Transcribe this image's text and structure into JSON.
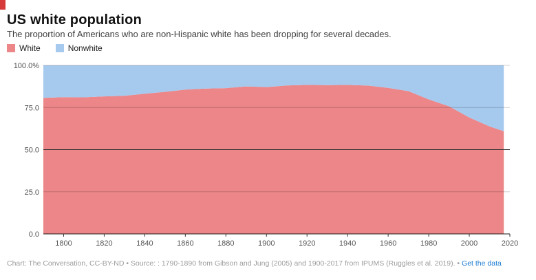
{
  "header": {
    "title": "US white population",
    "subtitle": "The proportion of Americans who are non-Hispanic white has been dropping for several decades."
  },
  "legend": {
    "items": [
      {
        "label": "White",
        "color": "#ec8688"
      },
      {
        "label": "Nonwhite",
        "color": "#a6c9ee"
      }
    ]
  },
  "chart_data": {
    "type": "area",
    "stacked": true,
    "percent": true,
    "title": "US white population",
    "x": [
      1790,
      1800,
      1810,
      1820,
      1830,
      1840,
      1850,
      1860,
      1870,
      1880,
      1890,
      1900,
      1910,
      1920,
      1930,
      1940,
      1950,
      1960,
      1970,
      1980,
      1990,
      2000,
      2010,
      2017
    ],
    "series": [
      {
        "name": "White",
        "color": "#ec8688",
        "values": [
          80.7,
          81.1,
          81.0,
          81.6,
          81.9,
          83.2,
          84.3,
          85.6,
          86.2,
          86.5,
          87.5,
          87.1,
          88.1,
          88.4,
          88.3,
          88.4,
          88.0,
          86.6,
          84.7,
          79.8,
          75.7,
          69.1,
          63.8,
          60.9
        ]
      },
      {
        "name": "Nonwhite",
        "color": "#a6c9ee",
        "values": [
          19.3,
          18.9,
          19.0,
          18.4,
          18.1,
          16.8,
          15.7,
          14.4,
          13.8,
          13.5,
          12.5,
          12.9,
          11.9,
          11.6,
          11.7,
          11.6,
          12.0,
          13.4,
          15.3,
          20.2,
          24.3,
          30.9,
          36.2,
          39.1
        ]
      }
    ],
    "xlim": [
      1790,
      2020
    ],
    "ylim": [
      0,
      100
    ],
    "x_ticks": [
      1800,
      1820,
      1840,
      1860,
      1880,
      1900,
      1920,
      1940,
      1960,
      1980,
      2000,
      2020
    ],
    "y_ticks": [
      0,
      25,
      50,
      75,
      100
    ],
    "y_tick_labels": [
      "0.0",
      "25.0",
      "50.0",
      "75.0",
      "100.0%"
    ],
    "grid": "horizontal",
    "highlight_gridline": 50,
    "legend_position": "top-left"
  },
  "footer": {
    "credit": "Chart: The Conversation, CC-BY-ND • Source: : 1790-1890 from Gibson and Jung (2005) and 1900-2017 from IPUMS (Ruggles et al. 2019). •",
    "link": "Get the data",
    "link_color": "#1a7ad1"
  }
}
